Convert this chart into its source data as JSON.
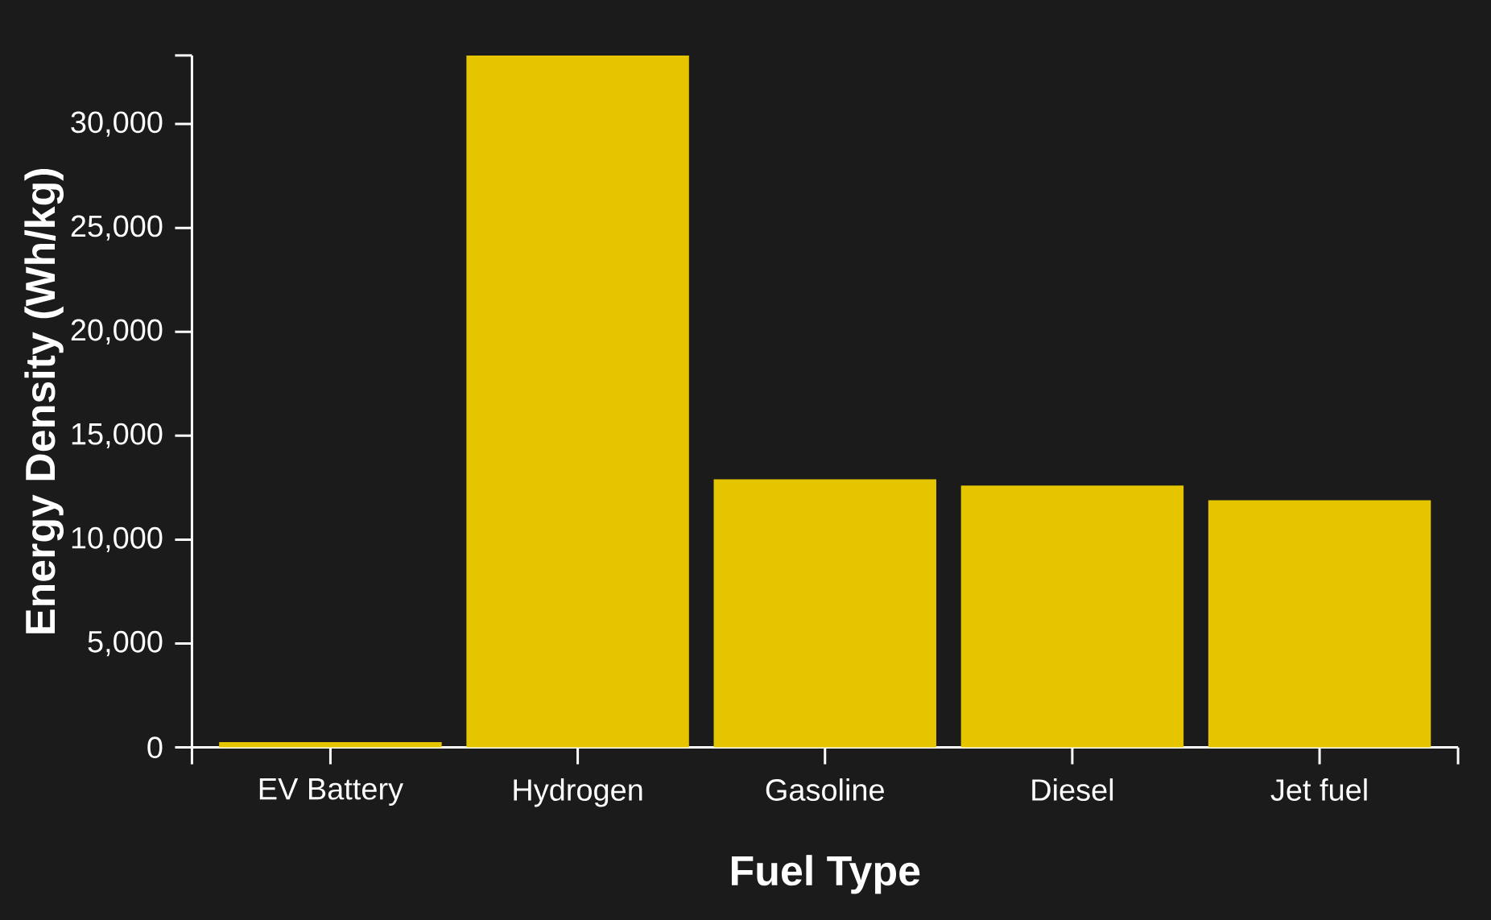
{
  "chart_data": {
    "type": "bar",
    "xlabel": "Fuel Type",
    "ylabel": "Energy Density (Wh/kg)",
    "categories": [
      "EV Battery",
      "Hydrogen",
      "Gasoline",
      "Diesel",
      "Jet fuel"
    ],
    "values": [
      260,
      33300,
      12900,
      12600,
      11900
    ],
    "color": "#e5c500",
    "ylim": [
      0,
      33300
    ],
    "yticks": [
      0,
      {
        "value": 5000,
        "label": "5,000"
      },
      {
        "value": 10000,
        "label": "10,000"
      },
      {
        "value": 15000,
        "label": "15,000"
      },
      {
        "value": 20000,
        "label": "20,000"
      },
      {
        "value": 25000,
        "label": "25,000"
      },
      {
        "value": 30000,
        "label": "30,000"
      }
    ]
  }
}
